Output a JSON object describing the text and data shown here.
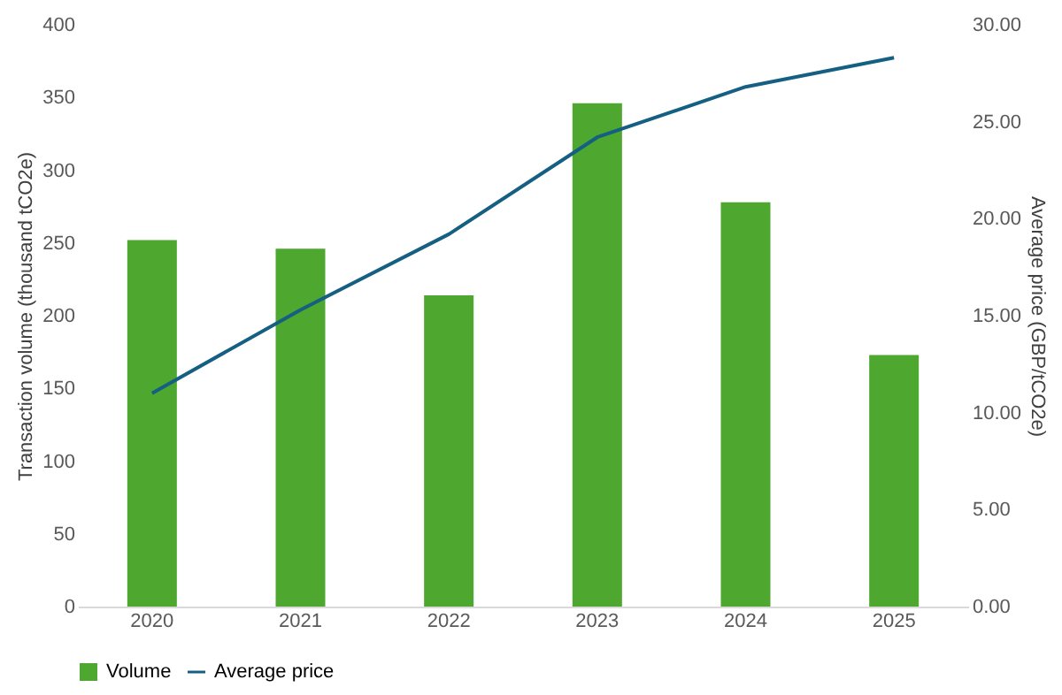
{
  "chart_data": {
    "type": "bar",
    "categories": [
      "2020",
      "2021",
      "2022",
      "2023",
      "2024",
      "2025"
    ],
    "ylabel": "Transaction volume (thousand tCO2e)",
    "y2label": "Average price (GBP/tCO2e)",
    "ylim": [
      0,
      400
    ],
    "yticks": [
      0,
      50,
      100,
      150,
      200,
      250,
      300,
      350,
      400
    ],
    "y2lim": [
      0,
      30
    ],
    "y2ticks": [
      {
        "value": 0,
        "label": "0.00"
      },
      {
        "value": 5,
        "label": "5.00"
      },
      {
        "value": 10,
        "label": "10.00"
      },
      {
        "value": 15,
        "label": "15.00"
      },
      {
        "value": 20,
        "label": "20.00"
      },
      {
        "value": 25,
        "label": "25.00"
      },
      {
        "value": 30,
        "label": "30.00"
      }
    ],
    "series": [
      {
        "name": "Volume",
        "color": "#4ea72e",
        "values": [
          252,
          246,
          214,
          346,
          278,
          173
        ]
      },
      {
        "name": "Average price",
        "type": "line",
        "axis": "y2",
        "color": "#156082",
        "values": [
          11.0,
          15.3,
          19.2,
          24.2,
          26.8,
          28.3
        ]
      }
    ],
    "legend": "bottom",
    "grid": false,
    "marker": "none",
    "line_style": "solid"
  }
}
